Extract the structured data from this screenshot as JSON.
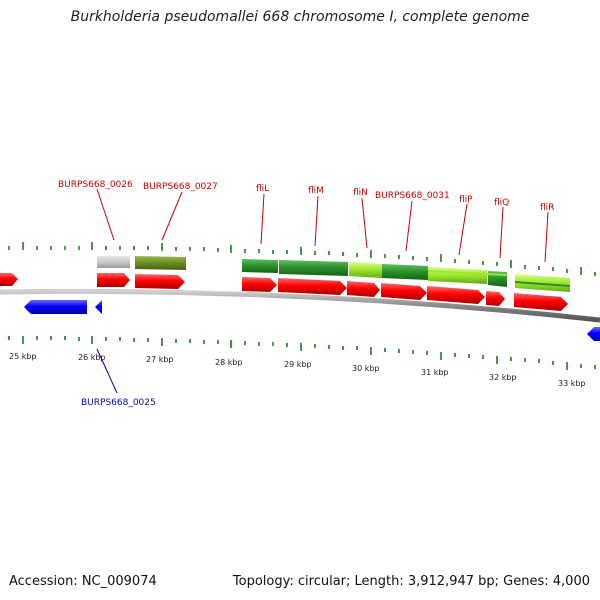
{
  "title": "Burkholderia pseudomallei 668 chromosome I, complete genome",
  "footer": {
    "accession": "Accession: NC_009074",
    "summary": "Topology: circular; Length: 3,912,947 bp; Genes: 4,000"
  },
  "colors": {
    "cds_forward": "#ff0000",
    "cds_reverse": "#0000ff",
    "label_forward": "#cc0000",
    "label_reverse": "#0000bb",
    "tick": "#1a7a1a",
    "backbone": "#8a8a8a",
    "feature_gray": "#c8c8c8",
    "feature_olive": "#6b8c22",
    "feature_dark_green": "#2a8f2a",
    "feature_light_green": "#9be62e"
  },
  "scale_labels": [
    "25 kbp",
    "26 kbp",
    "27 kbp",
    "28 kbp",
    "29 kbp",
    "30 kbp",
    "31 kbp",
    "32 kbp",
    "33 kbp"
  ],
  "gene_labels": [
    {
      "text": "BURPS668_0026",
      "strand": "forward"
    },
    {
      "text": "BURPS668_0027",
      "strand": "forward"
    },
    {
      "text": "fliL",
      "strand": "forward"
    },
    {
      "text": "fliM",
      "strand": "forward"
    },
    {
      "text": "fliN",
      "strand": "forward"
    },
    {
      "text": "BURPS668_0031",
      "strand": "forward"
    },
    {
      "text": "fliP",
      "strand": "forward"
    },
    {
      "text": "fliQ",
      "strand": "forward"
    },
    {
      "text": "fliR",
      "strand": "forward"
    },
    {
      "text": "BURPS668_0025",
      "strand": "reverse"
    }
  ]
}
